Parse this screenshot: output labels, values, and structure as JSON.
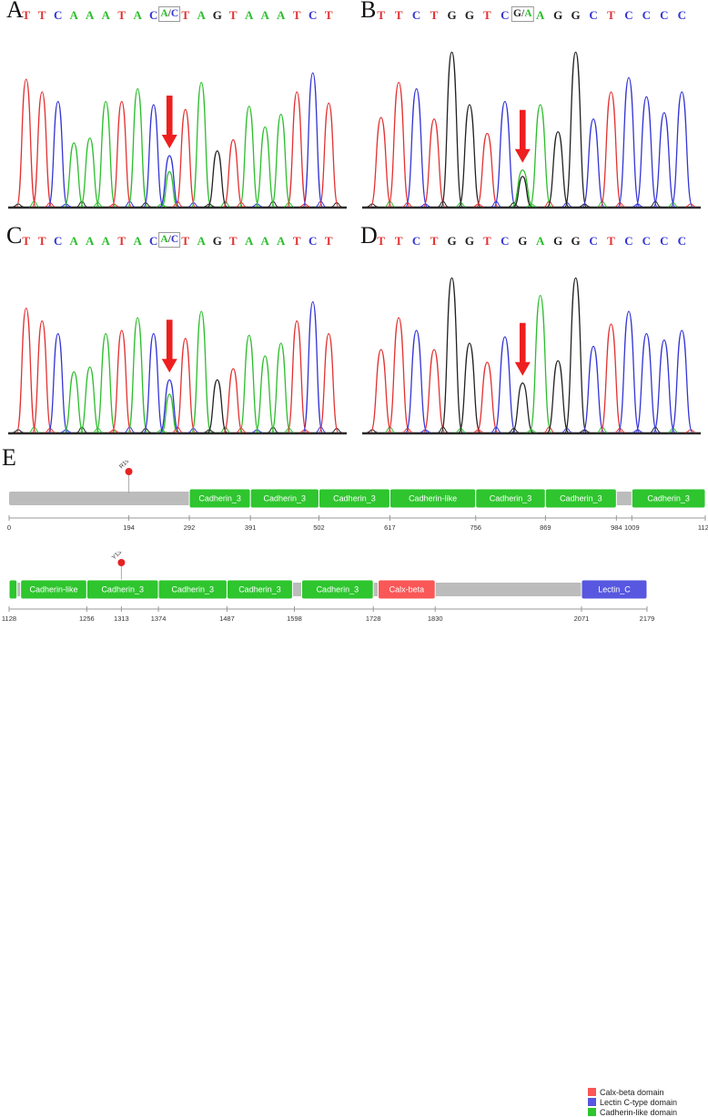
{
  "figure": {
    "e_label": "E"
  },
  "palette": {
    "A": "#2cbe2c",
    "T": "#e43131",
    "C": "#3434d6",
    "G": "#222222",
    "slash": "#444444",
    "arrow": "#ee1f1f",
    "baseline": "#2a2a2a",
    "bar_gray": "#bcbcbc",
    "axis_gray": "#999999",
    "tick_text": "#333333",
    "marker_red": "#e62222"
  },
  "chromatograms": [
    {
      "label": "A",
      "sequence": [
        "T",
        "T",
        "C",
        "A",
        "A",
        "A",
        "T",
        "A",
        "C",
        "A/C",
        "T",
        "A",
        "G",
        "T",
        "A",
        "A",
        "A",
        "T",
        "C",
        "T"
      ],
      "boxed_index": 9,
      "arrow_index": 9,
      "peaks": [
        {
          "b": "T",
          "h": 0.8
        },
        {
          "b": "T",
          "h": 0.72
        },
        {
          "b": "C",
          "h": 0.66
        },
        {
          "b": "A",
          "h": 0.4
        },
        {
          "b": "A",
          "h": 0.43
        },
        {
          "b": "A",
          "h": 0.66
        },
        {
          "b": "T",
          "h": 0.66
        },
        {
          "b": "A",
          "h": 0.74
        },
        {
          "b": "C",
          "h": 0.64
        },
        {
          "b": "C",
          "h": 0.32,
          "b2": "A",
          "h2": 0.22
        },
        {
          "b": "T",
          "h": 0.61
        },
        {
          "b": "A",
          "h": 0.78
        },
        {
          "b": "G",
          "h": 0.35
        },
        {
          "b": "T",
          "h": 0.42
        },
        {
          "b": "A",
          "h": 0.63
        },
        {
          "b": "A",
          "h": 0.5
        },
        {
          "b": "A",
          "h": 0.58
        },
        {
          "b": "T",
          "h": 0.72
        },
        {
          "b": "C",
          "h": 0.84
        },
        {
          "b": "T",
          "h": 0.65
        }
      ]
    },
    {
      "label": "B",
      "sequence": [
        "T",
        "T",
        "C",
        "T",
        "G",
        "G",
        "T",
        "C",
        "G/A",
        "A",
        "G",
        "G",
        "C",
        "T",
        "C",
        "C",
        "C",
        "C"
      ],
      "boxed_index": 8,
      "arrow_index": 8,
      "peaks": [
        {
          "b": "T",
          "h": 0.56
        },
        {
          "b": "T",
          "h": 0.78
        },
        {
          "b": "C",
          "h": 0.74
        },
        {
          "b": "T",
          "h": 0.55
        },
        {
          "b": "G",
          "h": 0.97
        },
        {
          "b": "G",
          "h": 0.64
        },
        {
          "b": "T",
          "h": 0.46
        },
        {
          "b": "C",
          "h": 0.66
        },
        {
          "b": "A",
          "h": 0.23,
          "b2": "G",
          "h2": 0.19
        },
        {
          "b": "A",
          "h": 0.64
        },
        {
          "b": "G",
          "h": 0.47
        },
        {
          "b": "G",
          "h": 0.97
        },
        {
          "b": "C",
          "h": 0.55
        },
        {
          "b": "T",
          "h": 0.72
        },
        {
          "b": "C",
          "h": 0.81
        },
        {
          "b": "C",
          "h": 0.69
        },
        {
          "b": "C",
          "h": 0.59
        },
        {
          "b": "C",
          "h": 0.72
        }
      ]
    },
    {
      "label": "C",
      "sequence": [
        "T",
        "T",
        "C",
        "A",
        "A",
        "A",
        "T",
        "A",
        "C",
        "A/C",
        "T",
        "A",
        "G",
        "T",
        "A",
        "A",
        "A",
        "T",
        "C",
        "T"
      ],
      "boxed_index": 9,
      "arrow_index": 9,
      "peaks": [
        {
          "b": "T",
          "h": 0.78
        },
        {
          "b": "T",
          "h": 0.7
        },
        {
          "b": "C",
          "h": 0.62
        },
        {
          "b": "A",
          "h": 0.38
        },
        {
          "b": "A",
          "h": 0.41
        },
        {
          "b": "A",
          "h": 0.62
        },
        {
          "b": "T",
          "h": 0.64
        },
        {
          "b": "A",
          "h": 0.72
        },
        {
          "b": "C",
          "h": 0.62
        },
        {
          "b": "C",
          "h": 0.33,
          "b2": "A",
          "h2": 0.24
        },
        {
          "b": "T",
          "h": 0.59
        },
        {
          "b": "A",
          "h": 0.76
        },
        {
          "b": "G",
          "h": 0.33
        },
        {
          "b": "T",
          "h": 0.4
        },
        {
          "b": "A",
          "h": 0.61
        },
        {
          "b": "A",
          "h": 0.48
        },
        {
          "b": "A",
          "h": 0.56
        },
        {
          "b": "T",
          "h": 0.7
        },
        {
          "b": "C",
          "h": 0.82
        },
        {
          "b": "T",
          "h": 0.62
        }
      ]
    },
    {
      "label": "D",
      "sequence": [
        "T",
        "T",
        "C",
        "T",
        "G",
        "G",
        "T",
        "C",
        "G",
        "A",
        "G",
        "G",
        "C",
        "T",
        "C",
        "C",
        "C",
        "C"
      ],
      "boxed_index": null,
      "arrow_index": 8,
      "peaks": [
        {
          "b": "T",
          "h": 0.52
        },
        {
          "b": "T",
          "h": 0.72
        },
        {
          "b": "C",
          "h": 0.64
        },
        {
          "b": "T",
          "h": 0.52
        },
        {
          "b": "G",
          "h": 0.97
        },
        {
          "b": "G",
          "h": 0.56
        },
        {
          "b": "T",
          "h": 0.44
        },
        {
          "b": "C",
          "h": 0.6
        },
        {
          "b": "G",
          "h": 0.31
        },
        {
          "b": "A",
          "h": 0.86
        },
        {
          "b": "G",
          "h": 0.45
        },
        {
          "b": "G",
          "h": 0.97
        },
        {
          "b": "C",
          "h": 0.54
        },
        {
          "b": "T",
          "h": 0.68
        },
        {
          "b": "C",
          "h": 0.76
        },
        {
          "b": "C",
          "h": 0.62
        },
        {
          "b": "C",
          "h": 0.58
        },
        {
          "b": "C",
          "h": 0.64
        }
      ]
    }
  ],
  "protein": {
    "rows": [
      {
        "start": 0,
        "end": 1128,
        "ticks": [
          0,
          194,
          292,
          391,
          502,
          617,
          756,
          869,
          984,
          1009,
          1128
        ],
        "domains": [
          {
            "label": "Cadherin_3",
            "start": 292,
            "end": 391,
            "type": "cadherin"
          },
          {
            "label": "Cadherin_3",
            "start": 391,
            "end": 502,
            "type": "cadherin"
          },
          {
            "label": "Cadherin_3",
            "start": 502,
            "end": 617,
            "type": "cadherin"
          },
          {
            "label": "Cadherin-like",
            "start": 617,
            "end": 756,
            "type": "cadherin"
          },
          {
            "label": "Cadherin_3",
            "start": 756,
            "end": 869,
            "type": "cadherin"
          },
          {
            "label": "Cadherin_3",
            "start": 869,
            "end": 984,
            "type": "cadherin"
          },
          {
            "label": "Cadherin_3",
            "start": 1009,
            "end": 1128,
            "type": "cadherin"
          }
        ],
        "markers": [
          {
            "label": "R194X",
            "position": 194
          }
        ]
      },
      {
        "start": 1128,
        "end": 2179,
        "ticks": [
          1128,
          1256,
          1313,
          1374,
          1487,
          1598,
          1728,
          1830,
          2071,
          2179
        ],
        "domains": [
          {
            "label": "",
            "start": 1128,
            "end": 1141,
            "type": "cadherin"
          },
          {
            "label": "Cadherin-like",
            "start": 1147,
            "end": 1256,
            "type": "cadherin"
          },
          {
            "label": "Cadherin_3",
            "start": 1256,
            "end": 1374,
            "type": "cadherin"
          },
          {
            "label": "Cadherin_3",
            "start": 1374,
            "end": 1487,
            "type": "cadherin"
          },
          {
            "label": "Cadherin_3",
            "start": 1487,
            "end": 1595,
            "type": "cadherin"
          },
          {
            "label": "Cadherin_3",
            "start": 1610,
            "end": 1728,
            "type": "cadherin"
          },
          {
            "label": "Calx-beta",
            "start": 1736,
            "end": 1830,
            "type": "calx"
          },
          {
            "label": "Lectin_C",
            "start": 2071,
            "end": 2179,
            "type": "lectin"
          }
        ],
        "markers": [
          {
            "label": "Y1313X",
            "position": 1313
          }
        ]
      }
    ],
    "domain_colors": {
      "cadherin": "#2ec52e",
      "calx": "#fa5757",
      "lectin": "#5757e0"
    },
    "legend": [
      {
        "label": "Calx-beta domain",
        "type": "calx"
      },
      {
        "label": "Lectin C-type domain",
        "type": "lectin"
      },
      {
        "label": "Cadherin-like domain",
        "type": "cadherin"
      }
    ]
  }
}
